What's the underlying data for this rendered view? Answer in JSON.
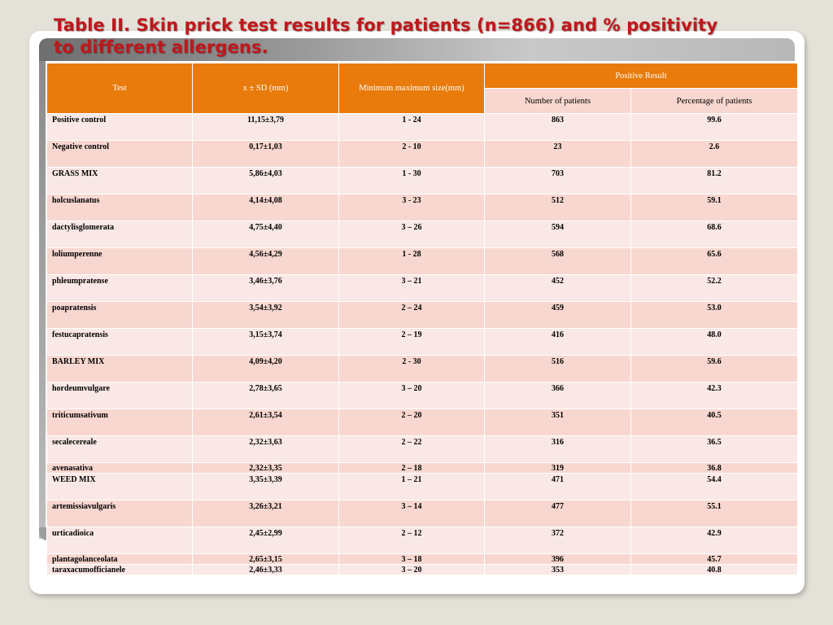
{
  "slide": {
    "title_line1": "Table II. Skin prick test results for patients (n=866) and % positivity",
    "title_line2": "to different allergens."
  },
  "table": {
    "headers": {
      "test": "Test",
      "mean_sd": "x ± SD (mm)",
      "min_max": "Minimum maximum size(mm)",
      "positive_result": "Positive Result",
      "num_patients": "Number of patients",
      "pct_patients": "Percentage of patients"
    },
    "rows": [
      {
        "test": "Positive control",
        "mean_sd": "11,15±3,79",
        "min_max": "1 - 24",
        "n": "863",
        "pct": "99.6"
      },
      {
        "test": "Negative control",
        "mean_sd": "0,17±1,03",
        "min_max": "2 - 10",
        "n": "23",
        "pct": "2.6"
      },
      {
        "test": "GRASS MIX",
        "mean_sd": "5,86±4,03",
        "min_max": "1 - 30",
        "n": "703",
        "pct": "81.2"
      },
      {
        "test": "holcuslanatus",
        "mean_sd": "4,14±4,08",
        "min_max": "3 - 23",
        "n": "512",
        "pct": "59.1"
      },
      {
        "test": "dactylisglomerata",
        "mean_sd": "4,75±4,40",
        "min_max": "3 – 26",
        "n": "594",
        "pct": "68.6"
      },
      {
        "test": "loliumperenne",
        "mean_sd": "4,56±4,29",
        "min_max": "1 - 28",
        "n": "568",
        "pct": "65.6"
      },
      {
        "test": "phleumpratense",
        "mean_sd": "3,46±3,76",
        "min_max": "3 – 21",
        "n": "452",
        "pct": "52.2"
      },
      {
        "test": "poapratensis",
        "mean_sd": "3,54±3,92",
        "min_max": "2 – 24",
        "n": "459",
        "pct": "53.0"
      },
      {
        "test": "festucapratensis",
        "mean_sd": "3,15±3,74",
        "min_max": "2 – 19",
        "n": "416",
        "pct": "48.0"
      },
      {
        "test": "BARLEY MIX",
        "mean_sd": "4,09±4,20",
        "min_max": "2 - 30",
        "n": "516",
        "pct": "59.6"
      },
      {
        "test": "hordeumvulgare",
        "mean_sd": "2,78±3,65",
        "min_max": "3 – 20",
        "n": "366",
        "pct": "42.3"
      },
      {
        "test": "triticumsativum",
        "mean_sd": "2,61±3,54",
        "min_max": "2 – 20",
        "n": "351",
        "pct": "40.5"
      },
      {
        "test": "secalecereale",
        "mean_sd": "2,32±3,63",
        "min_max": "2 – 22",
        "n": "316",
        "pct": "36.5"
      },
      {
        "test": "avenasativa",
        "mean_sd": "2,32±3,35",
        "min_max": "2 – 18",
        "n": "319",
        "pct": "36.8"
      },
      {
        "test": "WEED MIX",
        "mean_sd": "3,35±3,39",
        "min_max": "1 – 21",
        "n": "471",
        "pct": "54.4"
      },
      {
        "test": "artemissiavulgaris",
        "mean_sd": "3,26±3,21",
        "min_max": "3 – 14",
        "n": "477",
        "pct": "55.1"
      },
      {
        "test": "urticadioica",
        "mean_sd": "2,45±2,99",
        "min_max": "2 – 12",
        "n": "372",
        "pct": "42.9"
      },
      {
        "test": "plantagolanceolata",
        "mean_sd": "2,65±3,15",
        "min_max": "3 – 18",
        "n": "396",
        "pct": "45.7"
      },
      {
        "test": "taraxacumofficianele",
        "mean_sd": "2,46±3,33",
        "min_max": "3 – 20",
        "n": "353",
        "pct": "40.8"
      }
    ]
  }
}
